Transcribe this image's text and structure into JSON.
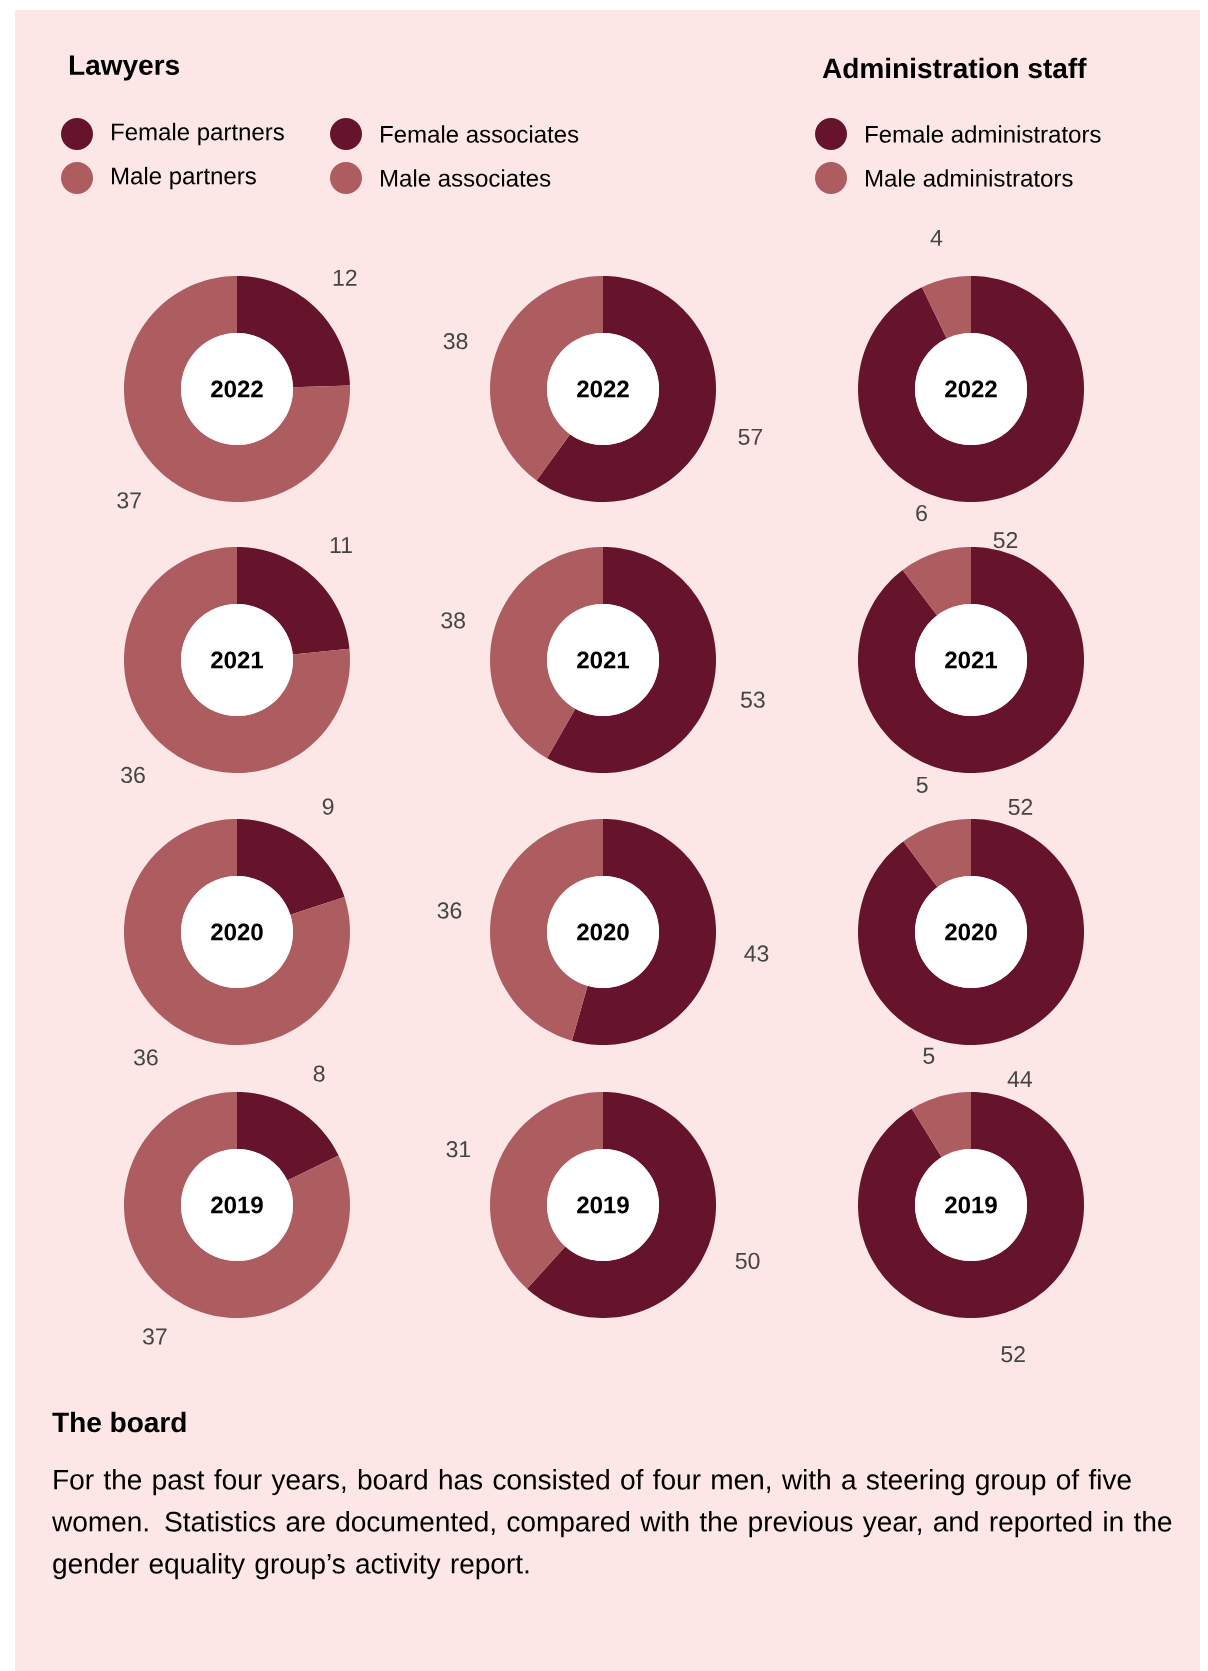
{
  "chart_data": [
    {
      "type": "donut",
      "legend_title": "Lawyers",
      "legend": "top",
      "title": "2022",
      "categories": [
        "Female partners",
        "Male partners"
      ],
      "values": [
        12,
        37
      ],
      "colors": [
        "#66142b",
        "#ad5c60"
      ],
      "data_labels": true
    },
    {
      "type": "donut",
      "legend": "top",
      "title": "2022",
      "categories": [
        "Female associates",
        "Male associates"
      ],
      "values": [
        57,
        38
      ],
      "colors": [
        "#66142b",
        "#ad5c60"
      ],
      "data_labels": true
    },
    {
      "type": "donut",
      "legend_title": "Administration staff",
      "legend": "top",
      "title": "2022",
      "categories": [
        "Female administrators",
        "Male administrators"
      ],
      "values": [
        52,
        4
      ],
      "colors": [
        "#66142b",
        "#ad5c60"
      ],
      "data_labels": true
    },
    {
      "type": "donut",
      "title": "2021",
      "categories": [
        null,
        null
      ],
      "values": [
        11,
        36
      ],
      "colors": [
        "#66142b",
        "#ad5c60"
      ],
      "data_labels": true
    },
    {
      "type": "donut",
      "title": "2021",
      "categories": [
        null,
        null
      ],
      "values": [
        53,
        38
      ],
      "colors": [
        "#66142b",
        "#ad5c60"
      ],
      "data_labels": true
    },
    {
      "type": "donut",
      "title": "2021",
      "categories": [
        null,
        null
      ],
      "values": [
        52,
        6
      ],
      "colors": [
        "#66142b",
        "#ad5c60"
      ],
      "data_labels": true
    },
    {
      "type": "donut",
      "title": "2020",
      "categories": [
        null,
        null
      ],
      "values": [
        9,
        36
      ],
      "colors": [
        "#66142b",
        "#ad5c60"
      ],
      "data_labels": true
    },
    {
      "type": "donut",
      "title": "2020",
      "categories": [
        null,
        null
      ],
      "values": [
        43,
        36
      ],
      "colors": [
        "#66142b",
        "#ad5c60"
      ],
      "data_labels": true
    },
    {
      "type": "donut",
      "title": "2020",
      "categories": [
        null,
        null
      ],
      "values": [
        44,
        5
      ],
      "colors": [
        "#66142b",
        "#ad5c60"
      ],
      "data_labels": true
    },
    {
      "type": "donut",
      "title": "2019",
      "categories": [
        null,
        null
      ],
      "values": [
        8,
        37
      ],
      "colors": [
        "#66142b",
        "#ad5c60"
      ],
      "data_labels": true
    },
    {
      "type": "donut",
      "title": "2019",
      "categories": [
        null,
        null
      ],
      "values": [
        50,
        31
      ],
      "colors": [
        "#66142b",
        "#ad5c60"
      ],
      "data_labels": true
    },
    {
      "type": "donut",
      "title": "2019",
      "categories": [
        null,
        null
      ],
      "values": [
        52,
        5
      ],
      "colors": [
        "#66142b",
        "#ad5c60"
      ],
      "data_labels": true
    },
    {
      "type": "other",
      "title": "The board",
      "annotations": [
        "For the past four years, board has consisted of four men, with a steering group of five women. Statistics are documented, compared with the previous year, and reported in the gender equality group’s activity report."
      ]
    }
  ]
}
